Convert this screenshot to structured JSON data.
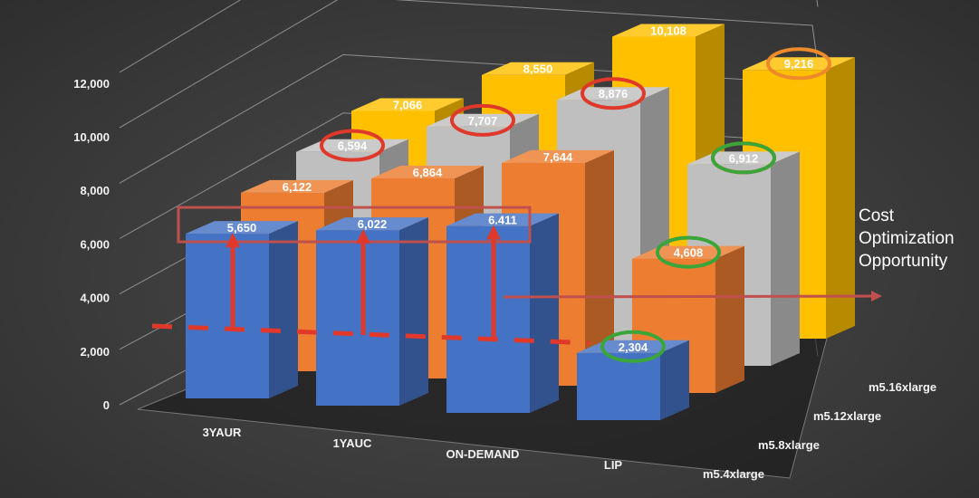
{
  "chart_data": {
    "type": "bar",
    "style": "3d-column",
    "categories": [
      "3YAUR",
      "1YAUC",
      "ON-DEMAND",
      "LIP"
    ],
    "series": [
      {
        "name": "m5.4xlarge",
        "values": [
          5650,
          6022,
          6411,
          2304
        ],
        "color": "#4472c4"
      },
      {
        "name": "m5.8xlarge",
        "values": [
          6122,
          6864,
          7644,
          4608
        ],
        "color": "#ed7d31"
      },
      {
        "name": "m5.12xlarge",
        "values": [
          6594,
          7707,
          8876,
          6912
        ],
        "color": "#bfbfbf"
      },
      {
        "name": "m5.16xlarge",
        "values": [
          7066,
          8550,
          10108,
          9216
        ],
        "color": "#ffc000"
      }
    ],
    "value_labels": [
      [
        "5,650",
        "6,022",
        "6.411",
        "2,304"
      ],
      [
        "6,122",
        "6,864",
        "7,644",
        "4,608"
      ],
      [
        "6,594",
        "7,707",
        "8,876",
        "6,912"
      ],
      [
        "7,066",
        "8,550",
        "10,108",
        "9,216"
      ]
    ],
    "y_ticks": [
      "0",
      "2,000",
      "4,000",
      "6,000",
      "8,000",
      "10,000",
      "12,000"
    ],
    "ylim": [
      0,
      12000
    ],
    "grid": true,
    "title": "",
    "xlabel": "",
    "ylabel": "",
    "annotations": {
      "callout_lines": [
        "Cost",
        "Optimization",
        "Opportunity"
      ],
      "red_circles": [
        [
          0,
          2
        ],
        [
          1,
          2
        ],
        [
          2,
          2
        ],
        [
          3,
          2
        ]
      ],
      "green_circles": [
        [
          3,
          1
        ],
        [
          3,
          2
        ],
        [
          3,
          0
        ]
      ],
      "orange_circles": [
        [
          3,
          3
        ]
      ],
      "highlight_box_series": 0,
      "highlight_box_categories": [
        0,
        1,
        2
      ],
      "red_color": "#e0392b",
      "green_color": "#3aa63a",
      "orange_color": "#ee8a2a",
      "arrow_color": "#c0504d"
    }
  }
}
